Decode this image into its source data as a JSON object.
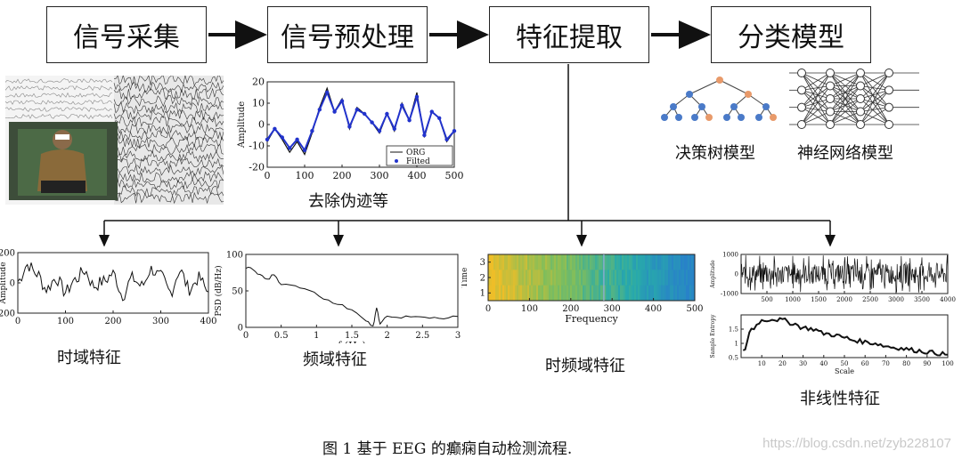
{
  "steps": [
    "信号采集",
    "信号预处理",
    "特征提取",
    "分类模型"
  ],
  "labels": {
    "preprocess": "去除伪迹等",
    "decision_tree": "决策树模型",
    "neural_net": "神经网络模型",
    "time_domain": "时域特征",
    "freq_domain": "频域特征",
    "time_freq": "时频域特征",
    "nonlinear": "非线性特征"
  },
  "caption": "图 1  基于 EEG 的癫痫自动检测流程.",
  "watermark": "https://blog.csdn.net/zyb228107",
  "chart_data": [
    {
      "type": "line",
      "ylabel": "Amplitude",
      "xlim": [
        0,
        500
      ],
      "ylim": [
        -20,
        20
      ],
      "x_ticks": [
        0,
        100,
        200,
        300,
        400,
        500
      ],
      "y_ticks": [
        -20,
        -10,
        0,
        10,
        20
      ],
      "legend": [
        "ORG",
        "Filted"
      ],
      "legend_position": "bottom-right",
      "series": [
        {
          "name": "ORG",
          "x": [
            0,
            20,
            40,
            60,
            80,
            100,
            120,
            140,
            160,
            180,
            200,
            220,
            240,
            260,
            280,
            300,
            320,
            340,
            360,
            380,
            400,
            420,
            440,
            460,
            480,
            500
          ],
          "values": [
            -8,
            -2,
            -7,
            -13,
            -8,
            -14,
            -4,
            8,
            17,
            6,
            12,
            -2,
            8,
            5,
            1,
            -4,
            5,
            -3,
            10,
            2,
            15,
            -6,
            6,
            3,
            -8,
            -3
          ]
        },
        {
          "name": "Filted",
          "x": [
            0,
            20,
            40,
            60,
            80,
            100,
            120,
            140,
            160,
            180,
            200,
            220,
            240,
            260,
            280,
            300,
            320,
            340,
            360,
            380,
            400,
            420,
            440,
            460,
            480,
            500
          ],
          "values": [
            -7,
            -2,
            -6,
            -11,
            -7,
            -12,
            -3,
            7,
            15,
            6,
            11,
            -1,
            7,
            5,
            1,
            -3,
            5,
            -2,
            9,
            2,
            13,
            -5,
            6,
            3,
            -7,
            -3
          ]
        }
      ]
    },
    {
      "type": "line",
      "ylabel": "Amplitude",
      "xlim": [
        0,
        400
      ],
      "ylim": [
        -200,
        200
      ],
      "x_ticks": [
        0,
        100,
        200,
        300,
        400
      ],
      "y_ticks": [
        -200,
        0,
        200
      ],
      "series": [
        {
          "x": [
            0,
            20,
            40,
            60,
            80,
            100,
            120,
            140,
            160,
            180,
            200,
            220,
            240,
            260,
            280,
            300,
            320,
            340,
            360,
            380,
            400
          ],
          "values": [
            10,
            120,
            60,
            -40,
            30,
            -60,
            20,
            80,
            -20,
            10,
            60,
            -80,
            30,
            -20,
            90,
            40,
            -60,
            80,
            -40,
            30,
            -60
          ]
        }
      ]
    },
    {
      "type": "line",
      "xlabel": "f (Hz)",
      "ylabel": "PSD (dB/Hz)",
      "xlim": [
        0,
        3
      ],
      "ylim": [
        0,
        100
      ],
      "x_ticks": [
        0,
        0.5,
        1,
        1.5,
        2,
        2.5,
        3
      ],
      "y_ticks": [
        0,
        50,
        100
      ],
      "series": [
        {
          "x": [
            0,
            0.1,
            0.2,
            0.3,
            0.4,
            0.5,
            0.7,
            0.9,
            1.1,
            1.3,
            1.5,
            1.7,
            1.8,
            1.85,
            1.9,
            2.0,
            2.2,
            2.4,
            2.6,
            2.8,
            3.0
          ],
          "values": [
            82,
            80,
            72,
            65,
            73,
            60,
            56,
            52,
            40,
            32,
            25,
            10,
            2,
            26,
            5,
            15,
            14,
            16,
            14,
            12,
            15
          ]
        }
      ]
    },
    {
      "type": "heatmap",
      "xlabel": "Frequency",
      "ylabel": "Time",
      "xlim": [
        0,
        500
      ],
      "ylim": [
        0.5,
        3.5
      ],
      "x_ticks": [
        0,
        100,
        200,
        300,
        400,
        500
      ],
      "y_ticks": [
        1,
        2,
        3
      ]
    },
    {
      "type": "line",
      "xlabel": "",
      "ylabel": "Amplitude",
      "xlim": [
        0,
        4000
      ],
      "ylim": [
        -1000,
        1000
      ],
      "x_ticks": [
        500,
        1000,
        1500,
        2000,
        2500,
        3000,
        3500,
        4000
      ],
      "y_ticks": [
        -1000,
        0,
        1000
      ]
    },
    {
      "type": "line",
      "xlabel": "Scale",
      "ylabel": "Sample Entropy",
      "xlim": [
        0,
        100
      ],
      "ylim": [
        0.5,
        2
      ],
      "x_ticks": [
        10,
        20,
        30,
        40,
        50,
        60,
        70,
        80,
        90,
        100
      ],
      "y_ticks": [
        0.5,
        1,
        1.5
      ],
      "series": [
        {
          "x": [
            1,
            5,
            10,
            15,
            20,
            25,
            30,
            35,
            40,
            45,
            50,
            55,
            60,
            65,
            70,
            75,
            80,
            85,
            90,
            95,
            100
          ],
          "values": [
            0.7,
            1.5,
            1.8,
            1.85,
            1.82,
            1.7,
            1.55,
            1.5,
            1.35,
            1.3,
            1.2,
            1.1,
            1.05,
            1.0,
            0.9,
            0.85,
            0.8,
            0.75,
            0.7,
            0.65,
            0.6
          ]
        }
      ]
    }
  ]
}
